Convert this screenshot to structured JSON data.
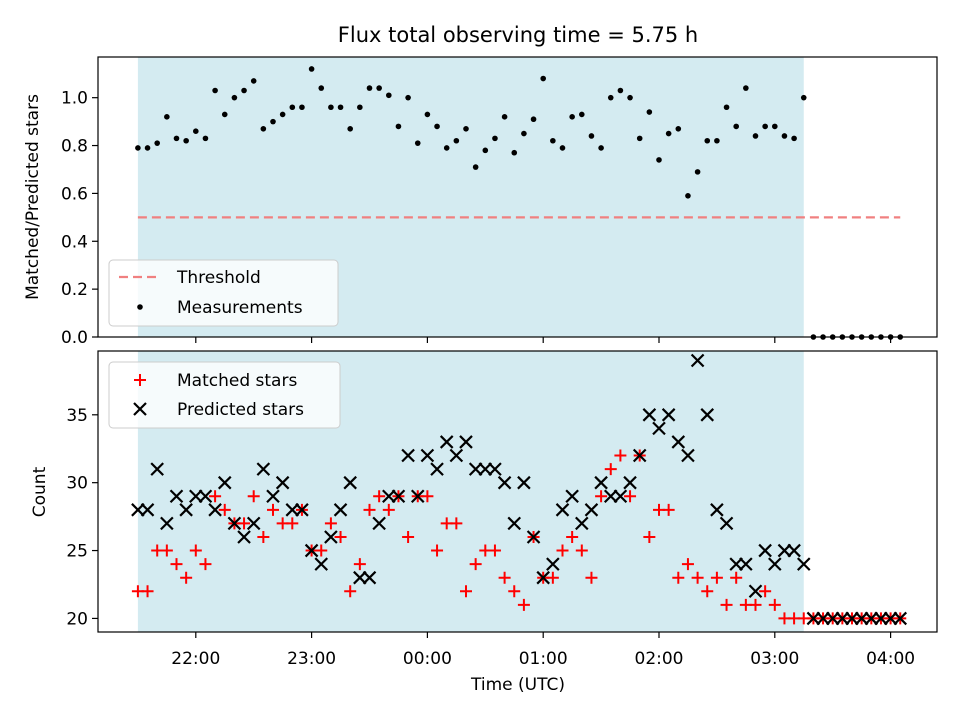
{
  "title": "Flux total observing time = 5.75 h",
  "chart_data": [
    {
      "type": "scatter",
      "panel": "top",
      "ylabel": "Matched/Predicted stars",
      "ylim": [
        0,
        1.17
      ],
      "yticks": [
        "0.0",
        "0.2",
        "0.4",
        "0.6",
        "0.8",
        "1.0"
      ],
      "grid": false,
      "legend_position": "lower-left",
      "observing_window": [
        "21:30",
        "03:15"
      ],
      "shade_color": "#d4ebf1",
      "threshold": {
        "name": "Threshold",
        "value": 0.5,
        "x_start": "21:30",
        "x_end": "04:05",
        "color": "#f08080",
        "style": "dashed"
      },
      "series": [
        {
          "name": "Measurements",
          "marker": "dot",
          "color": "#000000",
          "x": [
            "21:30",
            "21:35",
            "21:40",
            "21:45",
            "21:50",
            "21:55",
            "22:00",
            "22:05",
            "22:10",
            "22:15",
            "22:20",
            "22:25",
            "22:30",
            "22:35",
            "22:40",
            "22:45",
            "22:50",
            "22:55",
            "23:00",
            "23:05",
            "23:10",
            "23:15",
            "23:20",
            "23:25",
            "23:30",
            "23:35",
            "23:40",
            "23:45",
            "23:50",
            "23:55",
            "00:00",
            "00:05",
            "00:10",
            "00:15",
            "00:20",
            "00:25",
            "00:30",
            "00:35",
            "00:40",
            "00:45",
            "00:50",
            "00:55",
            "01:00",
            "01:05",
            "01:10",
            "01:15",
            "01:20",
            "01:25",
            "01:30",
            "01:35",
            "01:40",
            "01:45",
            "01:50",
            "01:55",
            "02:00",
            "02:05",
            "02:10",
            "02:15",
            "02:20",
            "02:25",
            "02:30",
            "02:35",
            "02:40",
            "02:45",
            "02:50",
            "02:55",
            "03:00",
            "03:05",
            "03:10",
            "03:15",
            "03:20",
            "03:25",
            "03:30",
            "03:35",
            "03:40",
            "03:45",
            "03:50",
            "03:55",
            "04:00",
            "04:05"
          ],
          "y": [
            0.79,
            0.79,
            0.81,
            0.92,
            0.83,
            0.82,
            0.86,
            0.83,
            1.03,
            0.93,
            1.0,
            1.03,
            1.07,
            0.87,
            0.9,
            0.93,
            0.96,
            0.96,
            1.12,
            1.04,
            0.96,
            0.96,
            0.87,
            0.96,
            1.04,
            1.04,
            1.01,
            0.88,
            1.0,
            0.81,
            0.93,
            0.88,
            0.79,
            0.82,
            0.87,
            0.71,
            0.78,
            0.83,
            0.92,
            0.77,
            0.85,
            0.91,
            1.08,
            0.82,
            0.79,
            0.92,
            0.93,
            0.84,
            0.79,
            1.0,
            1.03,
            1.0,
            0.83,
            0.94,
            0.74,
            0.85,
            0.87,
            0.59,
            0.69,
            0.82,
            0.82,
            0.96,
            0.88,
            1.04,
            0.84,
            0.88,
            0.88,
            0.84,
            0.83,
            1.0,
            0,
            0,
            0,
            0,
            0,
            0,
            0,
            0,
            0,
            0
          ]
        }
      ]
    },
    {
      "type": "scatter",
      "panel": "bottom",
      "xlabel": "Time (UTC)",
      "ylabel": "Count",
      "ylim": [
        19.0,
        39.7
      ],
      "yticks": [
        "20",
        "25",
        "30",
        "35"
      ],
      "xticks": [
        "22:00",
        "23:00",
        "00:00",
        "01:00",
        "02:00",
        "03:00",
        "04:00"
      ],
      "grid": false,
      "legend_position": "upper-left",
      "series": [
        {
          "name": "Matched stars",
          "marker": "plus",
          "color": "#ff0000",
          "x": [
            "21:30",
            "21:35",
            "21:40",
            "21:45",
            "21:50",
            "21:55",
            "22:00",
            "22:05",
            "22:10",
            "22:15",
            "22:20",
            "22:25",
            "22:30",
            "22:35",
            "22:40",
            "22:45",
            "22:50",
            "22:55",
            "23:00",
            "23:05",
            "23:10",
            "23:15",
            "23:20",
            "23:25",
            "23:30",
            "23:35",
            "23:40",
            "23:45",
            "23:50",
            "23:55",
            "00:00",
            "00:05",
            "00:10",
            "00:15",
            "00:20",
            "00:25",
            "00:30",
            "00:35",
            "00:40",
            "00:45",
            "00:50",
            "00:55",
            "01:00",
            "01:05",
            "01:10",
            "01:15",
            "01:20",
            "01:25",
            "01:30",
            "01:35",
            "01:40",
            "01:45",
            "01:50",
            "01:55",
            "02:00",
            "02:05",
            "02:10",
            "02:15",
            "02:20",
            "02:25",
            "02:30",
            "02:35",
            "02:40",
            "02:45",
            "02:50",
            "02:55",
            "03:00",
            "03:05",
            "03:10",
            "03:15",
            "03:20",
            "03:25",
            "03:30",
            "03:35",
            "03:40",
            "03:45",
            "03:50",
            "03:55",
            "04:00",
            "04:05"
          ],
          "y": [
            22,
            22,
            25,
            25,
            24,
            23,
            25,
            24,
            29,
            28,
            27,
            27,
            29,
            26,
            28,
            27,
            27,
            28,
            25,
            25,
            27,
            26,
            22,
            24,
            28,
            29,
            28,
            29,
            26,
            29,
            29,
            25,
            27,
            27,
            22,
            24,
            25,
            25,
            23,
            22,
            21,
            26,
            23,
            23,
            25,
            26,
            25,
            23,
            29,
            31,
            32,
            29,
            32,
            26,
            28,
            28,
            23,
            24,
            23,
            22,
            23,
            21,
            23,
            21,
            21,
            22,
            21,
            20,
            20,
            20,
            20,
            20,
            20,
            20,
            20,
            20,
            20,
            20,
            20,
            20
          ]
        },
        {
          "name": "Predicted stars",
          "marker": "x",
          "color": "#000000",
          "x": [
            "21:30",
            "21:35",
            "21:40",
            "21:45",
            "21:50",
            "21:55",
            "22:00",
            "22:05",
            "22:10",
            "22:15",
            "22:20",
            "22:25",
            "22:30",
            "22:35",
            "22:40",
            "22:45",
            "22:50",
            "22:55",
            "23:00",
            "23:05",
            "23:10",
            "23:15",
            "23:20",
            "23:25",
            "23:30",
            "23:35",
            "23:40",
            "23:45",
            "23:50",
            "23:55",
            "00:00",
            "00:05",
            "00:10",
            "00:15",
            "00:20",
            "00:25",
            "00:30",
            "00:35",
            "00:40",
            "00:45",
            "00:50",
            "00:55",
            "01:00",
            "01:05",
            "01:10",
            "01:15",
            "01:20",
            "01:25",
            "01:30",
            "01:35",
            "01:40",
            "01:45",
            "01:50",
            "01:55",
            "02:00",
            "02:05",
            "02:10",
            "02:15",
            "02:20",
            "02:25",
            "02:30",
            "02:35",
            "02:40",
            "02:45",
            "02:50",
            "02:55",
            "03:00",
            "03:05",
            "03:10",
            "03:15",
            "03:20",
            "03:25",
            "03:30",
            "03:35",
            "03:40",
            "03:45",
            "03:50",
            "03:55",
            "04:00",
            "04:05"
          ],
          "y": [
            28,
            28,
            31,
            27,
            29,
            28,
            29,
            29,
            28,
            30,
            27,
            26,
            27,
            31,
            29,
            30,
            28,
            28,
            25,
            24,
            26,
            28,
            30,
            23,
            23,
            27,
            29,
            29,
            32,
            29,
            32,
            31,
            33,
            32,
            33,
            31,
            31,
            31,
            30,
            27,
            30,
            26,
            23,
            24,
            28,
            29,
            27,
            28,
            30,
            29,
            29,
            30,
            32,
            35,
            34,
            35,
            33,
            32,
            39,
            35,
            28,
            27,
            24,
            24,
            22,
            25,
            24,
            25,
            25,
            24,
            20,
            20,
            20,
            20,
            20,
            20,
            20,
            20,
            20,
            20
          ]
        }
      ]
    }
  ]
}
